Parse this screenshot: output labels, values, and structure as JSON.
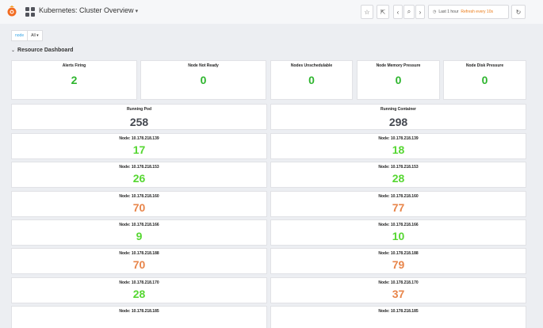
{
  "header": {
    "title": "Kubernetes: Cluster Overview",
    "time_range": "Last 1 hour",
    "refresh": "Refresh every 10s"
  },
  "variables": {
    "label": "node",
    "value": "All"
  },
  "row": {
    "title": "Resource Dashboard"
  },
  "stats": [
    {
      "title": "Alerts Firing",
      "value": "2"
    },
    {
      "title": "Node Not Ready",
      "value": "0"
    },
    {
      "title": "Nodes Unschedulable",
      "value": "0"
    },
    {
      "title": "Node Memory Pressure",
      "value": "0"
    },
    {
      "title": "Node Disk Pressure",
      "value": "0"
    }
  ],
  "totals": [
    {
      "title": "Running Pod",
      "value": "258"
    },
    {
      "title": "Running Container",
      "value": "298"
    }
  ],
  "nodes": [
    {
      "title": "Node: 10.178.218.139",
      "pods": "17",
      "containers": "18"
    },
    {
      "title": "Node: 10.178.218.153",
      "pods": "26",
      "containers": "28"
    },
    {
      "title": "Node: 10.178.218.160",
      "pods": "70",
      "containers": "77"
    },
    {
      "title": "Node: 10.178.218.166",
      "pods": "9",
      "containers": "10"
    },
    {
      "title": "Node: 10.178.218.188",
      "pods": "70",
      "containers": "79"
    },
    {
      "title": "Node: 10.178.218.170",
      "pods": "28",
      "containers": "37"
    },
    {
      "title": "Node: 10.178.218.185",
      "pods": "",
      "containers": ""
    }
  ],
  "colors": {
    "ok": "#2eb52e",
    "warn": "#e8854a",
    "neutral": "#444850",
    "ok_bright": "#56d732"
  },
  "value_colors": {
    "stats": [
      "#2eb52e",
      "#2eb52e",
      "#2eb52e",
      "#2eb52e",
      "#2eb52e"
    ],
    "nodes_pods": [
      "#56d732",
      "#56d732",
      "#e8854a",
      "#56d732",
      "#e8854a",
      "#56d732",
      "#56d732"
    ],
    "nodes_containers": [
      "#56d732",
      "#56d732",
      "#e8854a",
      "#56d732",
      "#e8854a",
      "#e8854a",
      "#56d732"
    ]
  }
}
